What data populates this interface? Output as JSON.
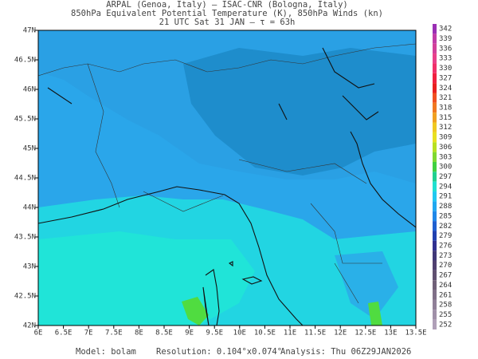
{
  "header": {
    "lines": [
      "ARPAL (Genoa, Italy)  —  ISAC-CNR (Bologna, Italy)",
      "850hPa Equivalent Potential Temperature (K), 850hPa Winds (kn)",
      "21 UTC Sat 31 JAN  —  τ = 63h"
    ]
  },
  "map": {
    "lon_range": [
      6,
      13.5
    ],
    "lat_range": [
      42,
      47
    ],
    "lon_ticks": [
      {
        "value": 6,
        "label": "6E"
      },
      {
        "value": 6.5,
        "label": "6.5E"
      },
      {
        "value": 7,
        "label": "7E"
      },
      {
        "value": 7.5,
        "label": "7.5E"
      },
      {
        "value": 8,
        "label": "8E"
      },
      {
        "value": 8.5,
        "label": "8.5E"
      },
      {
        "value": 9,
        "label": "9E"
      },
      {
        "value": 9.5,
        "label": "9.5E"
      },
      {
        "value": 10,
        "label": "10E"
      },
      {
        "value": 10.5,
        "label": "10.5E"
      },
      {
        "value": 11,
        "label": "11E"
      },
      {
        "value": 11.5,
        "label": "11.5E"
      },
      {
        "value": 12,
        "label": "12E"
      },
      {
        "value": 12.5,
        "label": "12.5E"
      },
      {
        "value": 13,
        "label": "13E"
      },
      {
        "value": 13.5,
        "label": "13.5E"
      }
    ],
    "lat_ticks": [
      {
        "value": 42,
        "label": "42N"
      },
      {
        "value": 42.5,
        "label": "42.5N"
      },
      {
        "value": 43,
        "label": "43N"
      },
      {
        "value": 43.5,
        "label": "43.5N"
      },
      {
        "value": 44,
        "label": "44N"
      },
      {
        "value": 44.5,
        "label": "44.5N"
      },
      {
        "value": 45,
        "label": "45N"
      },
      {
        "value": 45.5,
        "label": "45.5N"
      },
      {
        "value": 46,
        "label": "46N"
      },
      {
        "value": 46.5,
        "label": "46.5N"
      },
      {
        "value": 47,
        "label": "47N"
      }
    ]
  },
  "colorbar": {
    "levels": [
      342,
      339,
      336,
      333,
      330,
      327,
      324,
      321,
      318,
      315,
      312,
      309,
      306,
      303,
      300,
      297,
      294,
      291,
      288,
      285,
      282,
      279,
      276,
      273,
      270,
      267,
      264,
      261,
      258,
      255,
      252
    ],
    "colors": [
      "#9a2fb4",
      "#c03ca8",
      "#d2409a",
      "#e8408a",
      "#f0306a",
      "#f02040",
      "#e82020",
      "#f05020",
      "#f07820",
      "#f0a020",
      "#f0c820",
      "#e8e020",
      "#b8e020",
      "#80d830",
      "#40d040",
      "#20d090",
      "#20e0d0",
      "#20c8f0",
      "#20a8f0",
      "#2088e8",
      "#2060d0",
      "#2040b0",
      "#303090",
      "#403878",
      "#504070",
      "#605070",
      "#706078",
      "#807088",
      "#908098",
      "#a090a8",
      "#b0a0b8"
    ]
  },
  "footer": {
    "model": "Model: bolam",
    "resolution": "Resolution: 0.104°x0.074°",
    "analysis": "Analysis: Thu 06Z29JAN2026"
  }
}
